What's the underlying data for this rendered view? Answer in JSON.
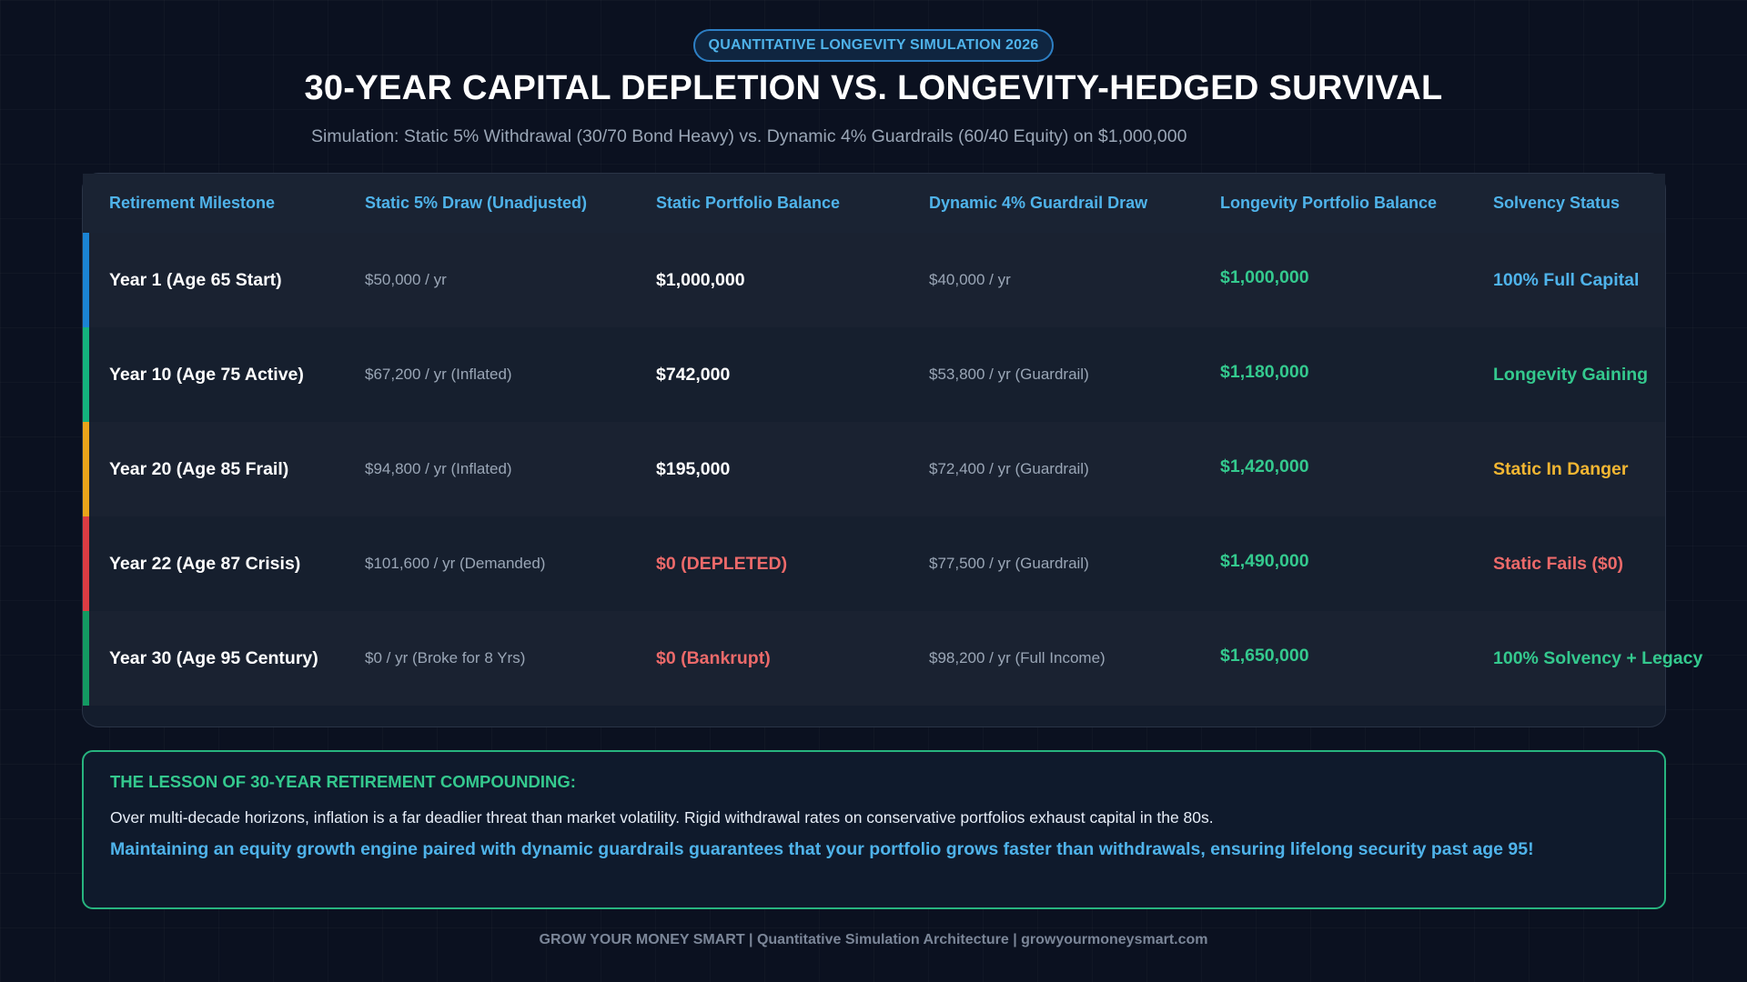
{
  "header": {
    "badge": "QUANTITATIVE LONGEVITY SIMULATION 2026",
    "title": "30-YEAR CAPITAL DEPLETION VS. LONGEVITY-HEDGED SURVIVAL",
    "subtitle": "Simulation: Static 5% Withdrawal (30/70 Bond Heavy) vs. Dynamic 4% Guardrails (60/40 Equity) on $1,000,000"
  },
  "table": {
    "columns": [
      "Retirement Milestone",
      "Static 5% Draw (Unadjusted)",
      "Static Portfolio Balance",
      "Dynamic 4% Guardrail Draw",
      "Longevity Portfolio Balance",
      "Solvency Status"
    ],
    "rows": [
      {
        "milestone": "Year 1 (Age 65 Start)",
        "static_draw": "$50,000 / yr",
        "static_balance": "$1,000,000",
        "dynamic_draw": "$40,000 / yr",
        "longevity_balance": "$1,000,000",
        "status": "100% Full Capital",
        "accent_color": "#1b84d4",
        "status_color": "#4fb3ea",
        "static_balance_color": "#ffffff"
      },
      {
        "milestone": "Year 10 (Age 75 Active)",
        "static_draw": "$67,200 / yr (Inflated)",
        "static_balance": "$742,000",
        "dynamic_draw": "$53,800 / yr (Guardrail)",
        "longevity_balance": "$1,180,000",
        "status": "Longevity Gaining",
        "accent_color": "#14b37d",
        "status_color": "#34c98e",
        "static_balance_color": "#ffffff"
      },
      {
        "milestone": "Year 20 (Age 85 Frail)",
        "static_draw": "$94,800 / yr (Inflated)",
        "static_balance": "$195,000",
        "dynamic_draw": "$72,400 / yr (Guardrail)",
        "longevity_balance": "$1,420,000",
        "status": "Static In Danger",
        "accent_color": "#eaa41a",
        "status_color": "#f2b632",
        "static_balance_color": "#ffffff"
      },
      {
        "milestone": "Year 22 (Age 87 Crisis)",
        "static_draw": "$101,600 / yr (Demanded)",
        "static_balance": "$0 (DEPLETED)",
        "dynamic_draw": "$77,500 / yr (Guardrail)",
        "longevity_balance": "$1,490,000",
        "status": "Static Fails ($0)",
        "accent_color": "#dc3c43",
        "status_color": "#ec6a6a",
        "static_balance_color": "#ec6a6a"
      },
      {
        "milestone": "Year 30 (Age 95 Century)",
        "static_draw": "$0 / yr (Broke for 8 Yrs)",
        "static_balance": "$0 (Bankrupt)",
        "dynamic_draw": "$98,200 / yr (Full Income)",
        "longevity_balance": "$1,650,000",
        "status": "100% Solvency + Legacy",
        "accent_color": "#139a62",
        "status_color": "#34c98e",
        "static_balance_color": "#ec6a6a"
      }
    ]
  },
  "lesson": {
    "heading": "THE LESSON OF 30-YEAR RETIREMENT COMPOUNDING:",
    "body": "Over multi-decade horizons, inflation is a far deadlier threat than market volatility. Rigid withdrawal rates on conservative portfolios exhaust capital in the 80s.",
    "highlight": "Maintaining an equity growth engine paired with dynamic guardrails guarantees that your portfolio grows faster than withdrawals, ensuring lifelong security past age 95!"
  },
  "footer": {
    "text": "GROW YOUR MONEY SMART | Quantitative Simulation Architecture | growyourmoneysmart.com"
  }
}
